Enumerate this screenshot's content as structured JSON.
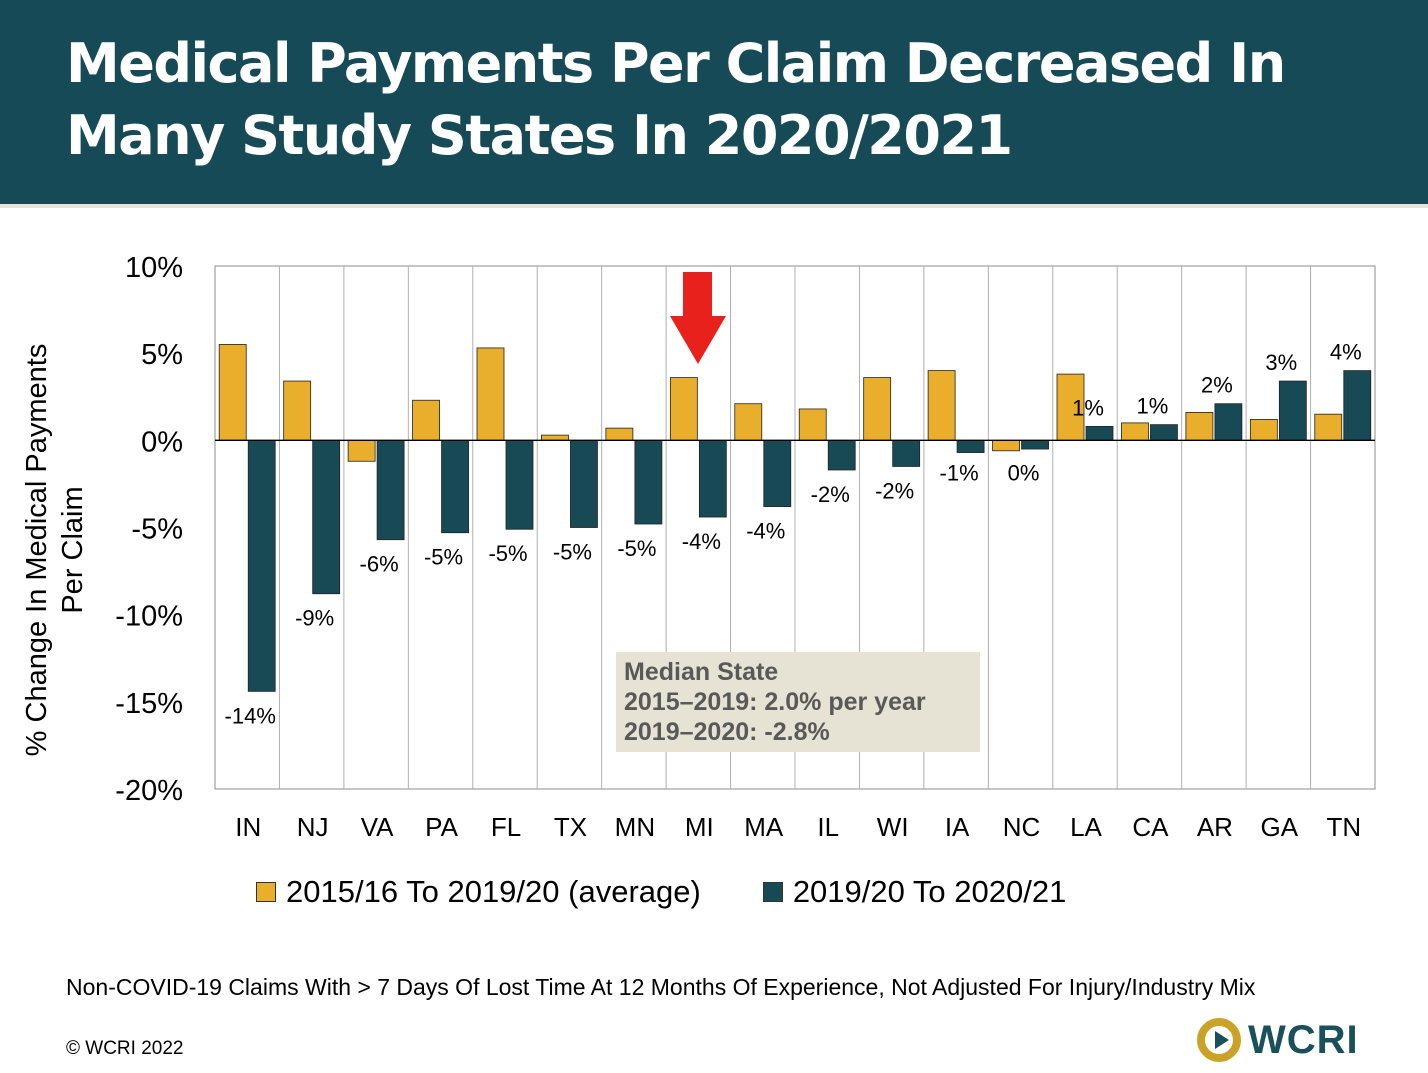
{
  "header": {
    "title_line1": "Medical Payments Per Claim Decreased In",
    "title_line2": "Many Study States In 2020/2021"
  },
  "colors": {
    "header_bg": "#154a56",
    "series1": "#e8ae2c",
    "series2": "#174a55",
    "arrow": "#e8211c",
    "annotation_bg": "#e6e3d4"
  },
  "chart_data": {
    "type": "bar",
    "ylabel_line1": "% Change In Medical Payments",
    "ylabel_line2": "Per Claim",
    "ylim": [
      -20,
      10
    ],
    "yticks": [
      10,
      5,
      0,
      -5,
      -10,
      -15,
      -20
    ],
    "ytick_labels": [
      "10%",
      "5%",
      "0%",
      "-5%",
      "-10%",
      "-15%",
      "-20%"
    ],
    "categories": [
      "IN",
      "NJ",
      "VA",
      "PA",
      "FL",
      "TX",
      "MN",
      "MI",
      "MA",
      "IL",
      "WI",
      "IA",
      "NC",
      "LA",
      "CA",
      "AR",
      "GA",
      "TN"
    ],
    "series": [
      {
        "name": "2015/16 To 2019/20 (average)",
        "values": [
          5.5,
          3.4,
          -1.2,
          2.3,
          5.3,
          0.3,
          0.7,
          3.6,
          2.1,
          1.8,
          3.6,
          4.0,
          -0.6,
          3.8,
          1.0,
          1.6,
          1.2,
          1.5
        ]
      },
      {
        "name": "2019/20 To 2020/21",
        "values": [
          -14.4,
          -8.8,
          -5.7,
          -5.3,
          -5.1,
          -5.0,
          -4.8,
          -4.4,
          -3.8,
          -1.7,
          -1.5,
          -0.7,
          -0.5,
          0.8,
          0.9,
          2.1,
          3.4,
          4.0
        ],
        "labels": [
          "-14%",
          "-9%",
          "-6%",
          "-5%",
          "-5%",
          "-5%",
          "-5%",
          "-4%",
          "-4%",
          "-2%",
          "-2%",
          "-1%",
          "0%",
          "1%",
          "1%",
          "2%",
          "3%",
          "4%"
        ]
      }
    ],
    "grid": "vertical",
    "legend_position": "bottom",
    "highlight_category": "MI"
  },
  "annotation": {
    "line1": "Median State",
    "line2": "2015–2019:  2.0% per year",
    "line3": "2019–2020: -2.8%"
  },
  "footnote": "Non-COVID-19 Claims With > 7 Days Of Lost Time At 12 Months Of Experience, Not Adjusted For Injury/Industry Mix",
  "copyright": "© WCRI 2022",
  "logo": {
    "text": "WCRI"
  }
}
